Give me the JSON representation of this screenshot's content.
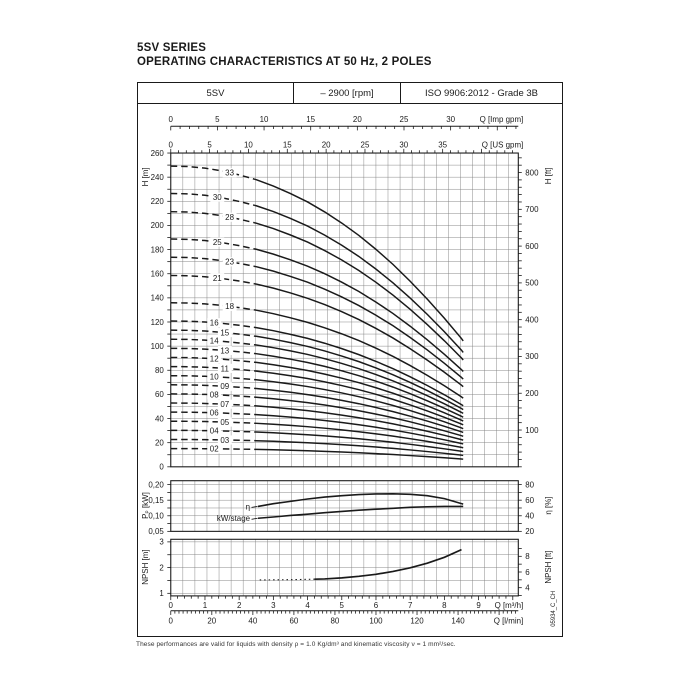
{
  "title": {
    "line1": "5SV SERIES",
    "line2": "OPERATING CHARACTERISTICS AT 50 Hz, 2 POLES"
  },
  "header": {
    "model": "5SV",
    "speed": "– 2900 [rpm]",
    "standard": "ISO 9906:2012 - Grade 3B"
  },
  "footnote": "These performances are valid for liquids with density ρ = 1.0 Kg/dm³ and kinematic viscosity ν = 1 mm²/sec.",
  "doc_code": "05934_C_CH",
  "colors": {
    "line": "#1a1a1a",
    "grid": "#7d7d7d",
    "text": "#1a1a1a"
  },
  "chart_data": [
    {
      "type": "line",
      "title": "Q-H characteristic curves per number of stages",
      "x_unit": "m³/h",
      "x_range": [
        0,
        10.16
      ],
      "top_axes": [
        {
          "label": "Q [Imp gpm]",
          "tick_labels": [
            0,
            5,
            10,
            15,
            20,
            25,
            30
          ],
          "minor_step": 1,
          "m3h_per_unit": 0.27276
        },
        {
          "label": "Q [US gpm]",
          "tick_labels": [
            0,
            5,
            10,
            15,
            20,
            25,
            30,
            35
          ],
          "minor_step": 1,
          "m3h_per_unit": 0.227125
        }
      ],
      "y_left": {
        "label": "H [m]",
        "range": [
          0,
          260
        ],
        "label_step": 20,
        "grid_step": 10
      },
      "y_right": {
        "label": "H [ft]",
        "labels": [
          100,
          200,
          300,
          400,
          500,
          600,
          700,
          800
        ],
        "tick_step": 20,
        "m_per_ft": 0.3048
      },
      "q_samples": [
        0,
        0.5,
        1,
        1.5,
        2,
        2.5,
        3,
        3.5,
        4,
        4.5,
        5,
        5.5,
        6,
        6.5,
        7,
        7.5,
        8,
        8.5,
        8.55
      ],
      "head_per_stage_m": [
        7.55,
        7.54,
        7.5,
        7.43,
        7.33,
        7.21,
        7.05,
        6.86,
        6.65,
        6.4,
        6.12,
        5.81,
        5.46,
        5.08,
        4.66,
        4.21,
        3.73,
        3.22,
        3.16
      ],
      "dash_solid_boundary_q": 2.45,
      "curve_end_q": 8.55,
      "curves": [
        {
          "label": "33",
          "stages": 33
        },
        {
          "label": "30",
          "stages": 30
        },
        {
          "label": "28",
          "stages": 28
        },
        {
          "label": "25",
          "stages": 25
        },
        {
          "label": "23",
          "stages": 23
        },
        {
          "label": "21",
          "stages": 21
        },
        {
          "label": "18",
          "stages": 18
        },
        {
          "label": "16",
          "stages": 16
        },
        {
          "label": "15",
          "stages": 15
        },
        {
          "label": "14",
          "stages": 14
        },
        {
          "label": "13",
          "stages": 13
        },
        {
          "label": "12",
          "stages": 12
        },
        {
          "label": "11",
          "stages": 11
        },
        {
          "label": "10",
          "stages": 10
        },
        {
          "label": "09",
          "stages": 9
        },
        {
          "label": "08",
          "stages": 8
        },
        {
          "label": "07",
          "stages": 7
        },
        {
          "label": "06",
          "stages": 6
        },
        {
          "label": "05",
          "stages": 5
        },
        {
          "label": "04",
          "stages": 4
        },
        {
          "label": "03",
          "stages": 3
        },
        {
          "label": "02",
          "stages": 2
        }
      ]
    },
    {
      "type": "line",
      "title": "Power per stage and efficiency",
      "y_left": {
        "label": "Pₚ [kW]",
        "tick_labels": [
          "0,20",
          "0,15",
          "0,10",
          "0,05"
        ],
        "tick_values": [
          0.2,
          0.15,
          0.1,
          0.05
        ],
        "minor_step": 0.025,
        "range": [
          0.05,
          0.2125
        ]
      },
      "y_right": {
        "label": "η [%]",
        "tick_labels": [
          80,
          60,
          40,
          20
        ],
        "tick_values": [
          80,
          60,
          40,
          20
        ],
        "minor_step": 10,
        "range": [
          20,
          85
        ]
      },
      "series": [
        {
          "name": "η",
          "axis": "right",
          "x": [
            2.55,
            3,
            3.5,
            4,
            4.5,
            5,
            5.5,
            6,
            6.5,
            7,
            7.5,
            8,
            8.55
          ],
          "y": [
            52,
            55.5,
            58.5,
            61.5,
            64,
            65.8,
            67.2,
            68,
            68.2,
            67.5,
            65.8,
            62,
            55
          ]
        },
        {
          "name": "kW/stage",
          "axis": "left",
          "x": [
            2.55,
            3,
            3.5,
            4,
            4.5,
            5,
            5.5,
            6,
            6.5,
            7,
            7.5,
            8,
            8.55
          ],
          "y": [
            0.092,
            0.096,
            0.101,
            0.105,
            0.11,
            0.114,
            0.118,
            0.121,
            0.124,
            0.127,
            0.129,
            0.13,
            0.13
          ]
        }
      ]
    },
    {
      "type": "line",
      "title": "NPSH required",
      "y_left": {
        "label": "NPSH [m]",
        "tick_labels": [
          3,
          2,
          1
        ],
        "tick_values": [
          3,
          2,
          1
        ],
        "minor_step": 0.5,
        "range": [
          0.9,
          3.1
        ]
      },
      "y_right": {
        "label": "NPSH [ft]",
        "tick_labels": [
          8,
          6,
          4
        ],
        "tick_values": [
          8,
          6,
          4
        ],
        "tick_step": 1,
        "m_per_ft": 0.3048
      },
      "bottom_axes": [
        {
          "label": "Q [m³/h]",
          "tick_labels": [
            0,
            1,
            2,
            3,
            4,
            5,
            6,
            7,
            8,
            9
          ],
          "minor_step": 0.2,
          "m3h_per_unit": 1
        },
        {
          "label": "Q [l/min]",
          "tick_labels": [
            0,
            20,
            40,
            60,
            80,
            100,
            120,
            140
          ],
          "minor_step": 2,
          "m3h_per_unit": 0.06
        }
      ],
      "series": [
        {
          "name": "NPSH",
          "style": "solid",
          "x": [
            4.2,
            4.5,
            5,
            5.5,
            6,
            6.5,
            7,
            7.5,
            8,
            8.5
          ],
          "y": [
            1.55,
            1.56,
            1.6,
            1.66,
            1.74,
            1.85,
            1.99,
            2.17,
            2.4,
            2.7
          ]
        },
        {
          "name": "NPSH-lead-in",
          "style": "dotted",
          "x": [
            2.6,
            3.5,
            4.2
          ],
          "y": [
            1.52,
            1.53,
            1.55
          ]
        }
      ]
    }
  ]
}
